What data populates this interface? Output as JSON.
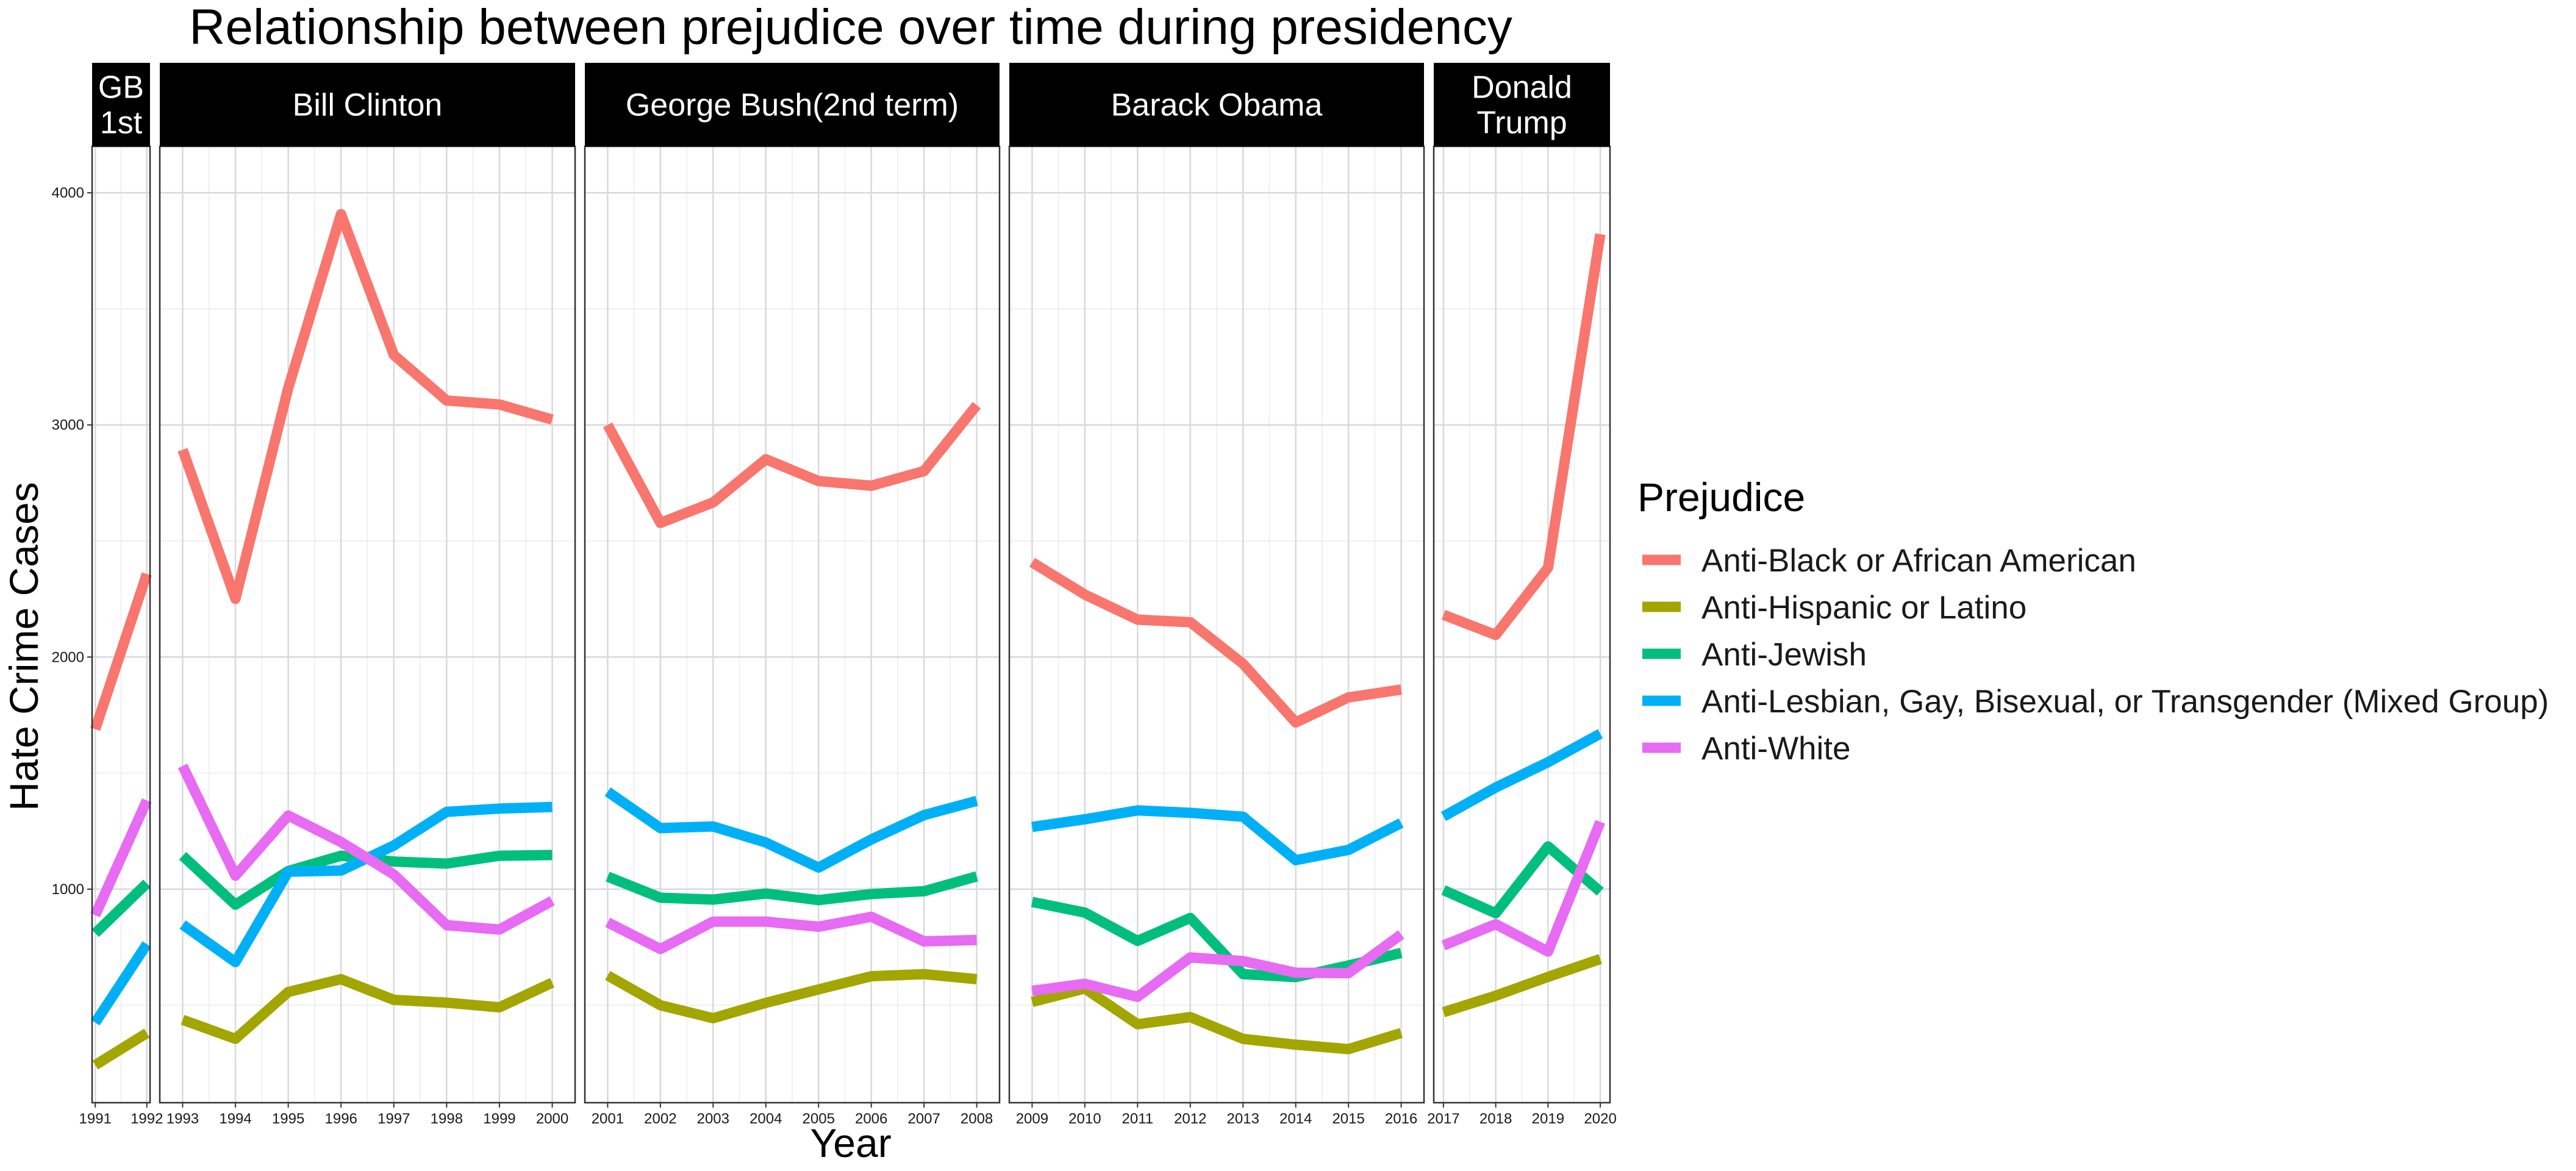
{
  "chart_data": {
    "type": "line",
    "title": "Relationship between prejudice over time during presidency",
    "xlabel": "Year",
    "ylabel": "Hate Crime Cases",
    "ylim": [
      80,
      4200
    ],
    "y_ticks": [
      1000,
      2000,
      3000,
      4000
    ],
    "grid": true,
    "legend_position": "right",
    "legend_title": "Prejudice",
    "panels": [
      {
        "label_lines": [
          "GB",
          "1st"
        ],
        "years": [
          1991,
          1992
        ]
      },
      {
        "label_lines": [
          "Bill Clinton"
        ],
        "years": [
          1993,
          1994,
          1995,
          1996,
          1997,
          1998,
          1999,
          2000
        ]
      },
      {
        "label_lines": [
          "George Bush(2nd term)"
        ],
        "years": [
          2001,
          2002,
          2003,
          2004,
          2005,
          2006,
          2007,
          2008
        ]
      },
      {
        "label_lines": [
          "Barack Obama"
        ],
        "years": [
          2009,
          2010,
          2011,
          2012,
          2013,
          2014,
          2015,
          2016
        ]
      },
      {
        "label_lines": [
          "Donald",
          "Trump"
        ],
        "years": [
          2017,
          2018,
          2019,
          2020
        ]
      }
    ],
    "series": [
      {
        "name": "Anti-Black or African American",
        "color": "#F8766D",
        "values": [
          [
            1689,
            2358
          ],
          [
            2893,
            2251,
            3159,
            3908,
            3301,
            3105,
            3088,
            3023
          ],
          [
            3000,
            2578,
            2666,
            2852,
            2758,
            2738,
            2801,
            3085
          ],
          [
            2408,
            2269,
            2161,
            2150,
            1971,
            1718,
            1826,
            1860
          ],
          [
            2182,
            2095,
            2385,
            3822
          ]
        ]
      },
      {
        "name": "Anti-Hispanic or Latino",
        "color": "#A3A500",
        "values": [
          [
            242,
            380
          ],
          [
            437,
            355,
            557,
            612,
            523,
            511,
            491,
            597
          ],
          [
            628,
            500,
            444,
            510,
            568,
            625,
            634,
            612
          ],
          [
            514,
            572,
            418,
            449,
            355,
            330,
            311,
            380
          ],
          [
            470,
            541,
            622,
            699
          ]
        ]
      },
      {
        "name": "Anti-Jewish",
        "color": "#00BF7D",
        "values": [
          [
            810,
            1025
          ],
          [
            1144,
            933,
            1078,
            1144,
            1119,
            1110,
            1144,
            1147
          ],
          [
            1054,
            963,
            955,
            981,
            953,
            979,
            991,
            1055
          ],
          [
            945,
            899,
            777,
            876,
            634,
            621,
            671,
            725
          ],
          [
            996,
            896,
            1184,
            989
          ]
        ]
      },
      {
        "name": "Anti-Lesbian, Gay, Bisexual, or Transgender (Mixed Group)",
        "color": "#00B0F6",
        "values": [
          [
            425,
            763
          ],
          [
            847,
            686,
            1075,
            1080,
            1188,
            1333,
            1347,
            1354
          ],
          [
            1420,
            1263,
            1270,
            1201,
            1093,
            1214,
            1319,
            1380
          ],
          [
            1268,
            1301,
            1339,
            1329,
            1312,
            1125,
            1169,
            1285
          ],
          [
            1313,
            1438,
            1547,
            1670
          ]
        ]
      },
      {
        "name": "Anti-White",
        "color": "#E76BF3",
        "values": [
          [
            888,
            1382
          ],
          [
            1531,
            1058,
            1317,
            1203,
            1063,
            845,
            826,
            950
          ],
          [
            857,
            742,
            860,
            860,
            838,
            881,
            775,
            781
          ],
          [
            562,
            592,
            536,
            706,
            690,
            640,
            638,
            805
          ],
          [
            757,
            849,
            731,
            1290
          ]
        ]
      }
    ]
  }
}
